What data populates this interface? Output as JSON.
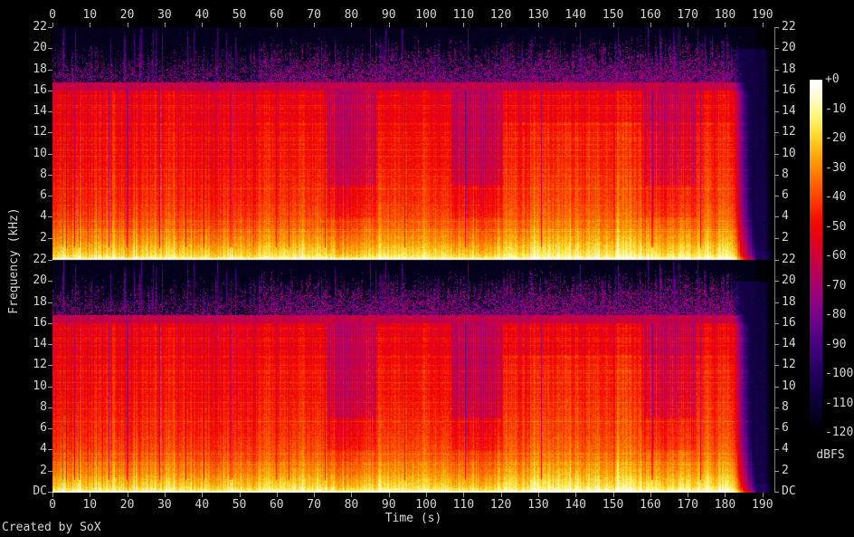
{
  "app": {
    "credit": "Created by SoX"
  },
  "colors": {
    "background": "#000000",
    "label_text": "#d6d6d6",
    "tick": "#9a9a9a",
    "plot_border": "#7e7e7e"
  },
  "chart_data": {
    "type": "heatmap",
    "subtype": "audio-spectrogram",
    "title": "",
    "xlabel": "Time (s)",
    "ylabel": "Frequency (kHz)",
    "duration_s": 193.2,
    "x_ticks": [
      0,
      10,
      20,
      30,
      40,
      50,
      60,
      70,
      80,
      90,
      100,
      110,
      120,
      130,
      140,
      150,
      160,
      170,
      180,
      190
    ],
    "channels": 2,
    "y_ticks_khz": [
      22,
      20,
      18,
      16,
      14,
      12,
      10,
      8,
      6,
      4,
      2
    ],
    "dc_label": "DC",
    "freq_max_khz": 22,
    "grid": false,
    "legend_position": "right-colorbar",
    "colorbar": {
      "label": "dBFS",
      "ticks": [
        "+0",
        "-10",
        "-20",
        "-30",
        "-40",
        "-50",
        "-60",
        "-70",
        "-80",
        "-90",
        "-100",
        "-110",
        "-120"
      ],
      "max_db": 0,
      "min_db": -120,
      "palette": [
        {
          "db": 0,
          "color": "#ffffff"
        },
        {
          "db": -6,
          "color": "#fffbd1"
        },
        {
          "db": -12,
          "color": "#fff77e"
        },
        {
          "db": -18,
          "color": "#ffdf38"
        },
        {
          "db": -24,
          "color": "#ffb50e"
        },
        {
          "db": -30,
          "color": "#ff8900"
        },
        {
          "db": -36,
          "color": "#ff5e00"
        },
        {
          "db": -42,
          "color": "#fb3400"
        },
        {
          "db": -48,
          "color": "#f40b00"
        },
        {
          "db": -54,
          "color": "#e60017"
        },
        {
          "db": -60,
          "color": "#d0003a"
        },
        {
          "db": -68,
          "color": "#ae0062"
        },
        {
          "db": -76,
          "color": "#8b0382"
        },
        {
          "db": -84,
          "color": "#62038a"
        },
        {
          "db": -92,
          "color": "#3f027b"
        },
        {
          "db": -100,
          "color": "#21015c"
        },
        {
          "db": -108,
          "color": "#0e013d"
        },
        {
          "db": -114,
          "color": "#050122"
        },
        {
          "db": -120,
          "color": "#000000"
        }
      ]
    },
    "body_cutoff_khz": 16,
    "sections": [
      {
        "t0": 0,
        "t1": 55,
        "kind": "verse",
        "top_khz": 19.3,
        "hf_density": 0.5,
        "body_boost_db": 0,
        "beat_stripes": false,
        "spike_rate": 0.1,
        "gap_rate": 0.05,
        "striation_db": 6
      },
      {
        "t0": 55,
        "t1": 73.5,
        "kind": "chorus",
        "top_khz": 20.1,
        "hf_density": 0.8,
        "body_boost_db": 2,
        "beat_stripes": false,
        "spike_rate": 0.07,
        "gap_rate": 0.01,
        "striation_db": 4
      },
      {
        "t0": 73.5,
        "t1": 86.5,
        "kind": "breakdown",
        "top_khz": 19.8,
        "hf_density": 0.75,
        "body_boost_db": -2,
        "beat_stripes": true,
        "spike_rate": 0.05,
        "gap_rate": 0.005,
        "striation_db": 4
      },
      {
        "t0": 86.5,
        "t1": 107,
        "kind": "chorus",
        "top_khz": 20.1,
        "hf_density": 0.8,
        "body_boost_db": 2,
        "beat_stripes": false,
        "spike_rate": 0.07,
        "gap_rate": 0.01,
        "striation_db": 4
      },
      {
        "t0": 107,
        "t1": 120.5,
        "kind": "breakdown",
        "top_khz": 19.8,
        "hf_density": 0.75,
        "body_boost_db": -2,
        "beat_stripes": true,
        "spike_rate": 0.05,
        "gap_rate": 0.005,
        "striation_db": 4
      },
      {
        "t0": 120.5,
        "t1": 158,
        "kind": "peak",
        "top_khz": 20.2,
        "hf_density": 0.85,
        "body_boost_db": 5,
        "beat_stripes": false,
        "spike_rate": 0.08,
        "gap_rate": 0.015,
        "striation_db": 5
      },
      {
        "t0": 158,
        "t1": 172,
        "kind": "peak-stripes",
        "top_khz": 20.2,
        "hf_density": 0.85,
        "body_boost_db": 3,
        "beat_stripes": true,
        "spike_rate": 0.14,
        "gap_rate": 0.02,
        "striation_db": 5
      },
      {
        "t0": 172,
        "t1": 182,
        "kind": "peak",
        "top_khz": 20.2,
        "hf_density": 0.85,
        "body_boost_db": 4,
        "beat_stripes": false,
        "spike_rate": 0.08,
        "gap_rate": 0.01,
        "striation_db": 5
      },
      {
        "t0": 182,
        "t1": 188,
        "kind": "fade",
        "top_khz": 20.0,
        "hf_density": 0.7,
        "body_boost_db": 0,
        "beat_stripes": false,
        "spike_rate": 0.02,
        "gap_rate": 0.0,
        "striation_db": 3
      },
      {
        "t0": 188,
        "t1": 193.2,
        "kind": "tail",
        "top_khz": 20.0,
        "hf_density": 0.0,
        "body_boost_db": 0,
        "beat_stripes": false,
        "spike_rate": 0.0,
        "gap_rate": 0.0,
        "striation_db": 2
      }
    ]
  }
}
